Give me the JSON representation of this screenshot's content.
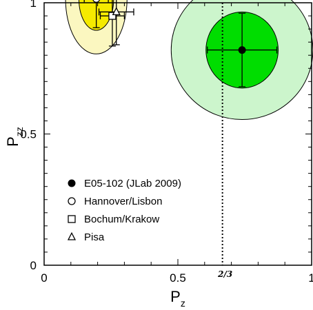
{
  "chart_data": {
    "type": "scatter",
    "xlabel": "P",
    "xlabel_sub": "z",
    "ylabel": "P",
    "ylabel_sub": "zz",
    "xlim": [
      0,
      1.0
    ],
    "ylim": [
      0,
      1.0
    ],
    "x_ticks": [
      {
        "value": 0,
        "label": "0"
      },
      {
        "value": 0.5,
        "label": "0.5"
      },
      {
        "value": 1.0,
        "label": "1"
      }
    ],
    "y_ticks": [
      {
        "value": 0,
        "label": "0"
      },
      {
        "value": 0.5,
        "label": "0.5"
      },
      {
        "value": 1.0,
        "label": "1"
      }
    ],
    "reference_line": {
      "x": 0.6667,
      "label": "2/3",
      "style": "dotted"
    },
    "series": [
      {
        "name": "E05-102 (JLab 2009)",
        "marker": "filled-circle",
        "x": 0.74,
        "y": 0.82,
        "xerr": 0.13,
        "yerr": 0.14,
        "ellipse": {
          "rx": 0.135,
          "ry": 0.145,
          "color": "#00dd00"
        },
        "outer_ellipse": {
          "rx": 0.265,
          "ry": 0.265,
          "color": "#ccf5cc"
        }
      },
      {
        "name": "Hannover/Lisbon",
        "marker": "open-circle",
        "x": 0.195,
        "y": 1.015,
        "xerr": 0.045,
        "yerr": 0.11,
        "ellipse": {
          "rx": 0.065,
          "ry": 0.12,
          "color": "#f5ea00"
        },
        "outer_ellipse": {
          "rx": 0.115,
          "ry": 0.21,
          "color": "#fbf7c0"
        }
      },
      {
        "name": "Bochum/Krakow",
        "marker": "open-square",
        "x": 0.255,
        "y": 0.95,
        "xerr": 0.045,
        "yerr": 0.115
      },
      {
        "name": "Pisa",
        "marker": "open-triangle",
        "x": 0.27,
        "y": 0.965,
        "xerr": 0.065,
        "yerr": 0.125
      }
    ]
  }
}
